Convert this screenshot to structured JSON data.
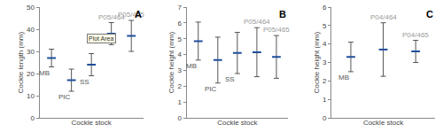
{
  "chart_data": [
    {
      "type": "scatter",
      "title": "A",
      "x_label": "Cockle stock",
      "y_label": "Cockle length (mm)",
      "categories": [
        "MB",
        "PIC",
        "SS",
        "P05/464",
        "P05/465"
      ],
      "series": [
        {
          "color": "#1f4e9c",
          "marker": "dash",
          "values": [
            27,
            17,
            24,
            38,
            37
          ],
          "errors": [
            4,
            5,
            5,
            5,
            7
          ]
        }
      ],
      "ylim": [
        0,
        50
      ],
      "yticks": [
        0,
        10,
        20,
        30,
        40,
        50
      ],
      "grid": false,
      "tick_labels": "y",
      "annotations": [
        "Plot Area"
      ]
    },
    {
      "type": "scatter",
      "title": "B",
      "x_label": "Cockle stock",
      "y_label": "Cockle height (mm)",
      "categories": [
        "MB",
        "PIC",
        "SS",
        "P05/464",
        "P05/465"
      ],
      "series": [
        {
          "color": "#1f4e9c",
          "marker": "dash",
          "values": [
            4.85,
            3.65,
            4.1,
            4.15,
            3.85
          ],
          "errors": [
            1.2,
            1.45,
            1.3,
            1.55,
            1.35
          ]
        }
      ],
      "ylim": [
        0,
        7
      ],
      "yticks": [
        0,
        1,
        2,
        3,
        4,
        5,
        6,
        7
      ],
      "grid": false,
      "tick_labels": "y"
    },
    {
      "type": "scatter",
      "title": "C",
      "x_label": "Cockle stock",
      "y_label": "Cockle height (mm)",
      "categories": [
        "MB",
        "P04/464",
        "P04/465"
      ],
      "series": [
        {
          "color": "#1f4e9c",
          "marker": "dash",
          "values": [
            3.3,
            3.7,
            3.6
          ],
          "errors": [
            0.8,
            1.45,
            0.6
          ]
        }
      ],
      "ylim": [
        0,
        6
      ],
      "yticks": [
        0,
        1,
        2,
        3,
        4,
        5,
        6
      ],
      "grid": false,
      "tick_labels": "y"
    }
  ]
}
